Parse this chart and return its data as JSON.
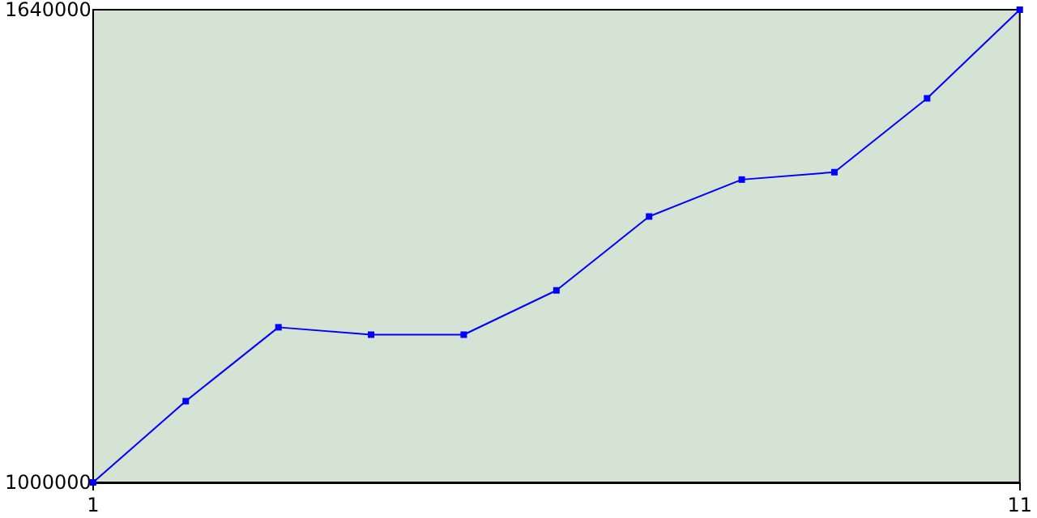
{
  "chart_data": {
    "type": "line",
    "x": [
      1,
      2,
      3,
      4,
      5,
      6,
      7,
      8,
      9,
      10,
      11
    ],
    "series": [
      {
        "color": "#0000ff",
        "values": [
          1000000,
          1110000,
          1210000,
          1200000,
          1200000,
          1260000,
          1360000,
          1410000,
          1420000,
          1520000,
          1640000
        ]
      }
    ],
    "xlim": [
      1,
      11
    ],
    "ylim": [
      1000000,
      1640000
    ],
    "xticks": [
      1,
      11
    ],
    "yticks": [
      1000000,
      1640000
    ],
    "grid": false,
    "marker": "square",
    "line_style": "solid"
  }
}
